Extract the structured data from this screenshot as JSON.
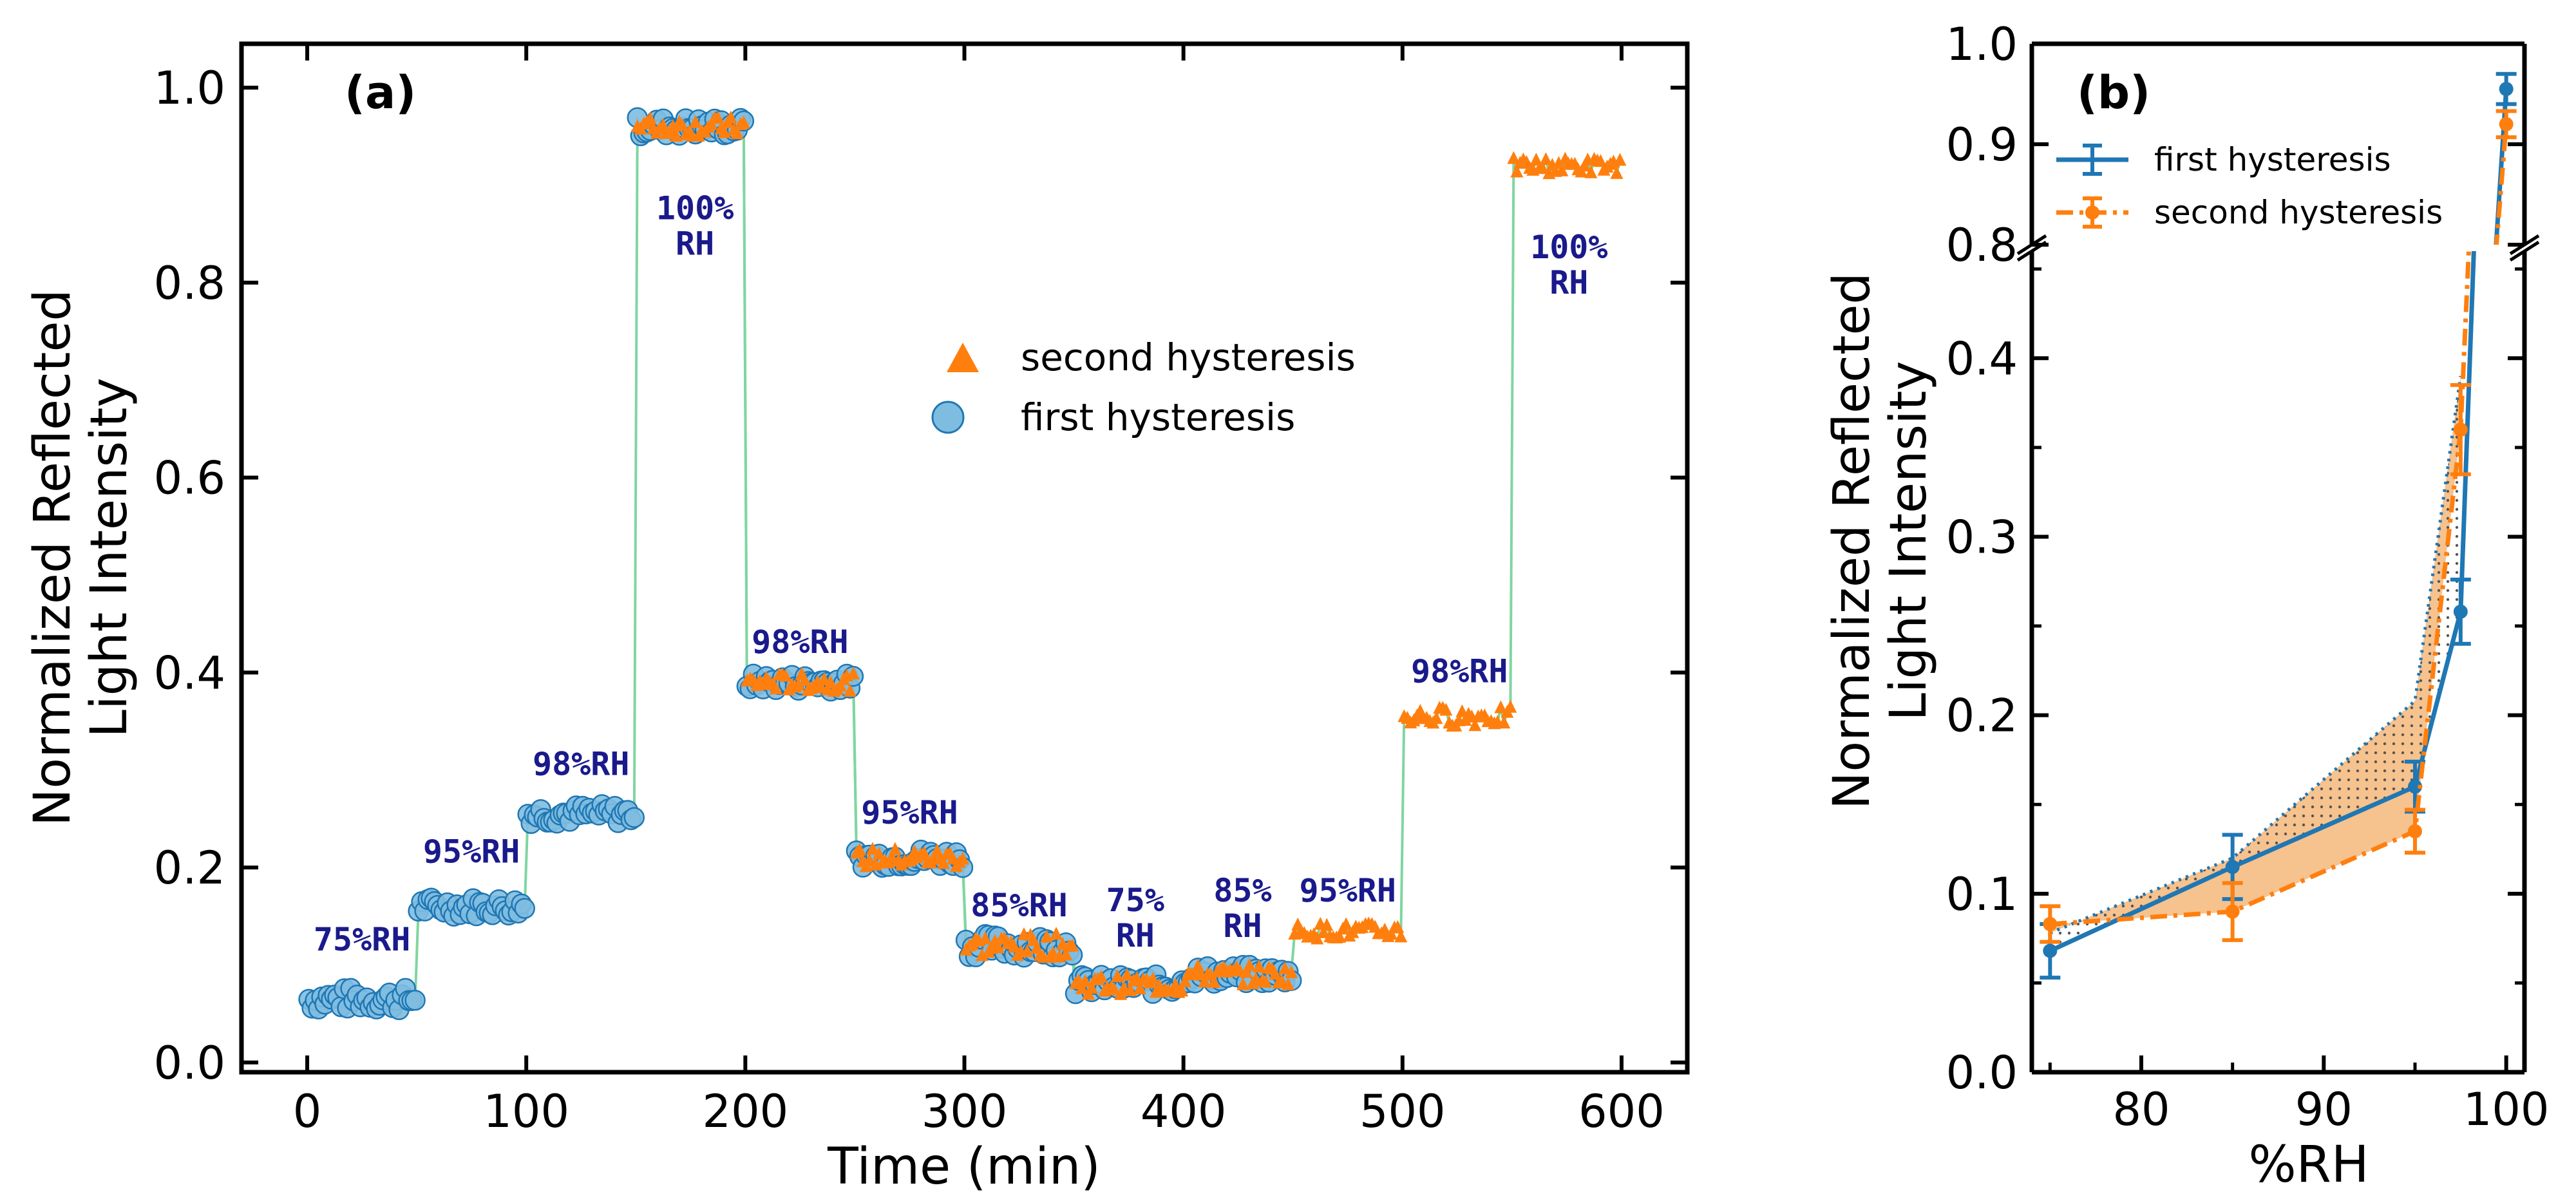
{
  "colors": {
    "first": "#1f77b4",
    "first_fill": "#7fbde0",
    "second": "#ff7f0e",
    "green_line": "#7fd6a0",
    "rh_label": "#1a1a8c",
    "shade": "#f5b77a"
  },
  "chart_data": [
    {
      "id": "a",
      "type": "scatter",
      "panel_label": "(a)",
      "xlabel": "Time (min)",
      "ylabel_lines": [
        "Normalized Reflected",
        "Light Intensity"
      ],
      "xlim": [
        -30,
        630
      ],
      "ylim": [
        -0.01,
        1.045
      ],
      "xticks": [
        0,
        100,
        200,
        300,
        400,
        500,
        600
      ],
      "xtick_labels": [
        "0",
        "100",
        "200",
        "300",
        "400",
        "500",
        "600"
      ],
      "yticks": [
        0.0,
        0.2,
        0.4,
        0.6,
        0.8,
        1.0
      ],
      "ytick_labels": [
        "0.0",
        "0.2",
        "0.4",
        "0.6",
        "0.8",
        "1.0"
      ],
      "legend": [
        {
          "label": "second hysteresis",
          "marker": "triangle"
        },
        {
          "label": "first hysteresis",
          "marker": "circle"
        }
      ],
      "segments": [
        {
          "t_start": 0,
          "t_end": 50,
          "level": 0.065,
          "noise": 0.012,
          "series": "first",
          "rh": "75%RH"
        },
        {
          "t_start": 50,
          "t_end": 100,
          "level": 0.16,
          "noise": 0.01,
          "series": "first",
          "rh": "95%RH"
        },
        {
          "t_start": 100,
          "t_end": 150,
          "level": 0.255,
          "noise": 0.01,
          "series": "first",
          "rh": "98%RH"
        },
        {
          "t_start": 150,
          "t_end": 200,
          "level": 0.96,
          "noise": 0.01,
          "series": "both",
          "rh": "100% RH"
        },
        {
          "t_start": 200,
          "t_end": 250,
          "level": 0.39,
          "noise": 0.009,
          "series": "both",
          "rh": "98%RH"
        },
        {
          "t_start": 250,
          "t_end": 300,
          "level": 0.21,
          "noise": 0.01,
          "series": "both",
          "rh": "95%RH"
        },
        {
          "t_start": 300,
          "t_end": 350,
          "level": 0.12,
          "noise": 0.012,
          "series": "both",
          "rh": "85%RH"
        },
        {
          "t_start": 350,
          "t_end": 400,
          "level": 0.08,
          "noise": 0.01,
          "series": "both",
          "rh": "75% RH"
        },
        {
          "t_start": 400,
          "t_end": 450,
          "level": 0.09,
          "noise": 0.01,
          "series": "both",
          "rh": "85% RH"
        },
        {
          "t_start": 450,
          "t_end": 500,
          "level": 0.135,
          "noise": 0.008,
          "series": "second",
          "rh": "95%RH"
        },
        {
          "t_start": 500,
          "t_end": 550,
          "level": 0.355,
          "noise": 0.01,
          "series": "second",
          "rh": "98%RH"
        },
        {
          "t_start": 550,
          "t_end": 600,
          "level": 0.92,
          "noise": 0.008,
          "series": "second",
          "rh": "100% RH"
        }
      ],
      "rh_labels": [
        {
          "text": [
            "75%RH"
          ],
          "t": 25,
          "y": 0.115
        },
        {
          "text": [
            "95%RH"
          ],
          "t": 75,
          "y": 0.205
        },
        {
          "text": [
            "98%RH"
          ],
          "t": 125,
          "y": 0.295
        },
        {
          "text": [
            "100%",
            "RH"
          ],
          "t": 177,
          "y": 0.865
        },
        {
          "text": [
            "98%RH"
          ],
          "t": 225,
          "y": 0.42
        },
        {
          "text": [
            "95%RH"
          ],
          "t": 275,
          "y": 0.245
        },
        {
          "text": [
            "85%RH"
          ],
          "t": 325,
          "y": 0.15
        },
        {
          "text": [
            "75%",
            "RH"
          ],
          "t": 378,
          "y": 0.155
        },
        {
          "text": [
            "85%",
            "RH"
          ],
          "t": 427,
          "y": 0.165
        },
        {
          "text": [
            "95%RH"
          ],
          "t": 475,
          "y": 0.165
        },
        {
          "text": [
            "98%RH"
          ],
          "t": 526,
          "y": 0.39
        },
        {
          "text": [
            "100%",
            "RH"
          ],
          "t": 576,
          "y": 0.825
        }
      ]
    },
    {
      "id": "b",
      "type": "line",
      "panel_label": "(b)",
      "xlabel": "%RH",
      "ylabel_lines": [
        "Normalized Reflected",
        "Light Intensity"
      ],
      "xlim": [
        74,
        101
      ],
      "ylim_lower": [
        0.0,
        0.46
      ],
      "ylim_upper": [
        0.8,
        1.0
      ],
      "xticks": [
        80,
        90,
        100
      ],
      "xtick_labels": [
        "80",
        "90",
        "100"
      ],
      "yticks_lower": [
        0.0,
        0.1,
        0.2,
        0.3,
        0.4
      ],
      "ytick_labels_lower": [
        "0.0",
        "0.1",
        "0.2",
        "0.3",
        "0.4"
      ],
      "yticks_upper": [
        0.8,
        0.9,
        1.0
      ],
      "ytick_labels_upper": [
        "0.8",
        "0.9",
        "1.0"
      ],
      "series": [
        {
          "name": "first hysteresis",
          "style": "solid",
          "x": [
            75,
            85,
            95,
            97.5,
            100
          ],
          "y": [
            0.068,
            0.115,
            0.16,
            0.258,
            0.955
          ],
          "yerr": [
            0.015,
            0.018,
            0.014,
            0.018,
            0.015
          ]
        },
        {
          "name": "second hysteresis",
          "style": "dashdot",
          "x": [
            75,
            85,
            95,
            97.5,
            100
          ],
          "y": [
            0.083,
            0.09,
            0.135,
            0.36,
            0.92
          ],
          "yerr": [
            0.01,
            0.016,
            0.012,
            0.025,
            0.013
          ]
        }
      ],
      "upper_branch": {
        "x": [
          75,
          85,
          95,
          97.5
        ],
        "y": [
          0.078,
          0.12,
          0.208,
          0.39
        ]
      }
    }
  ]
}
